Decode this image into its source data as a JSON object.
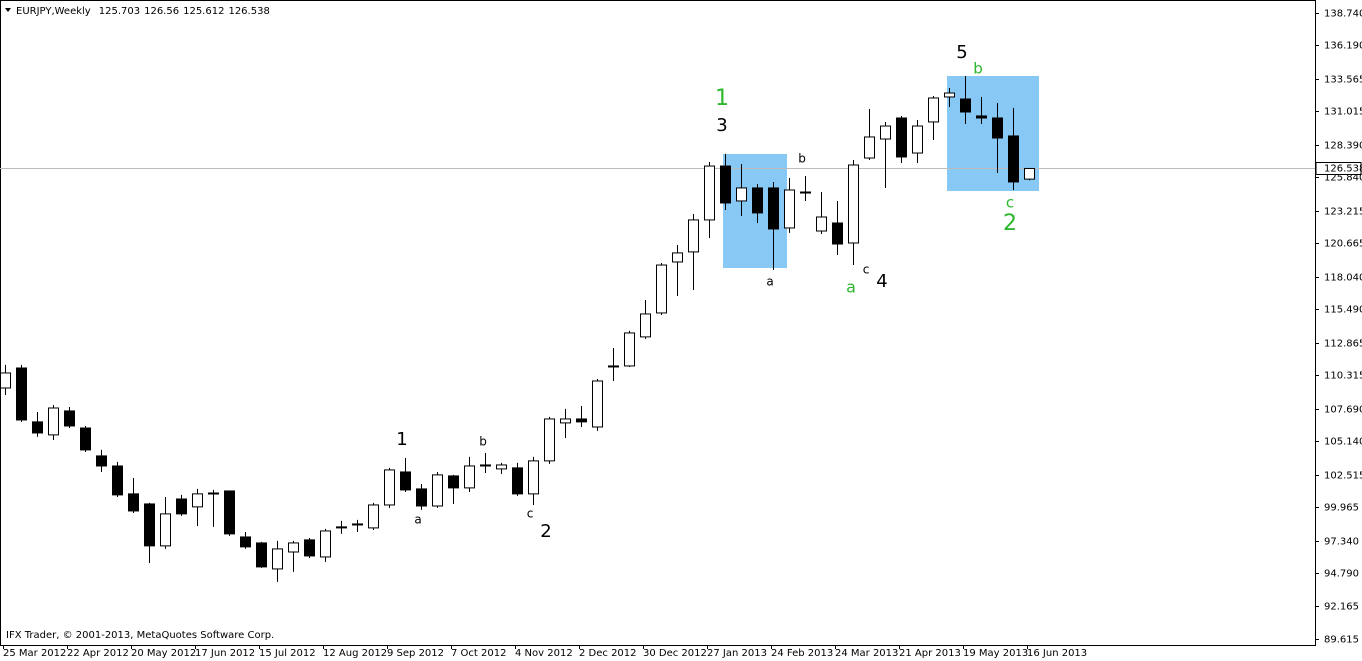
{
  "chart_data": {
    "type": "candlestick",
    "title": "EURJPY,Weekly",
    "copyright": "IFX Trader, © 2001-2013, MetaQuotes Software Corp.",
    "x": [
      "25 Mar 2012",
      "1 Apr 2012",
      "8 Apr 2012",
      "15 Apr 2012",
      "22 Apr 2012",
      "29 Apr 2012",
      "6 May 2012",
      "13 May 2012",
      "20 May 2012",
      "27 May 2012",
      "3 Jun 2012",
      "10 Jun 2012",
      "17 Jun 2012",
      "24 Jun 2012",
      "1 Jul 2012",
      "8 Jul 2012",
      "15 Jul 2012",
      "22 Jul 2012",
      "29 Jul 2012",
      "5 Aug 2012",
      "12 Aug 2012",
      "19 Aug 2012",
      "26 Aug 2012",
      "2 Sep 2012",
      "9 Sep 2012",
      "16 Sep 2012",
      "23 Sep 2012",
      "30 Sep 2012",
      "7 Oct 2012",
      "14 Oct 2012",
      "21 Oct 2012",
      "28 Oct 2012",
      "4 Nov 2012",
      "11 Nov 2012",
      "18 Nov 2012",
      "25 Nov 2012",
      "2 Dec 2012",
      "9 Dec 2012",
      "16 Dec 2012",
      "23 Dec 2012",
      "30 Dec 2012",
      "6 Jan 2013",
      "13 Jan 2013",
      "20 Jan 2013",
      "27 Jan 2013",
      "3 Feb 2013",
      "10 Feb 2013",
      "17 Feb 2013",
      "24 Feb 2013",
      "3 Mar 2013",
      "10 Mar 2013",
      "17 Mar 2013",
      "24 Mar 2013",
      "31 Mar 2013",
      "7 Apr 2013",
      "14 Apr 2013",
      "21 Apr 2013",
      "28 Apr 2013",
      "5 May 2013",
      "12 May 2013",
      "19 May 2013",
      "26 May 2013",
      "2 Jun 2013",
      "9 Jun 2013",
      "16 Jun 2013"
    ],
    "open": [
      109.31,
      110.88,
      106.65,
      105.63,
      107.51,
      106.17,
      103.98,
      103.19,
      101.0,
      100.21,
      96.92,
      100.6,
      99.98,
      101.0,
      101.23,
      97.62,
      97.15,
      95.11,
      96.44,
      97.39,
      96.05,
      98.33,
      98.56,
      98.33,
      100.13,
      102.72,
      101.39,
      100.05,
      102.41,
      101.47,
      103.27,
      102.96,
      103.04,
      101.0,
      103.59,
      106.57,
      106.88,
      106.25,
      110.96,
      111.04,
      113.32,
      115.2,
      119.2,
      119.99,
      122.5,
      126.73,
      123.99,
      125.01,
      125.01,
      121.87,
      124.62,
      121.63,
      122.26,
      120.69,
      127.36,
      128.85,
      130.5,
      127.75,
      130.19,
      132.15,
      131.99,
      130.66,
      130.5,
      129.09,
      125.703
    ],
    "high": [
      111.12,
      111.12,
      107.43,
      107.98,
      107.82,
      106.33,
      104.45,
      103.51,
      102.25,
      100.29,
      100.76,
      100.92,
      101.39,
      101.31,
      101.23,
      98.01,
      97.23,
      97.31,
      97.31,
      97.54,
      98.25,
      98.88,
      98.96,
      100.29,
      103.04,
      103.82,
      101.78,
      102.72,
      102.49,
      103.9,
      104.21,
      103.43,
      103.43,
      103.9,
      107.04,
      107.67,
      107.9,
      110.02,
      112.45,
      113.79,
      116.22,
      119.12,
      120.53,
      122.97,
      127.05,
      127.68,
      126.89,
      125.32,
      125.48,
      125.79,
      125.95,
      124.69,
      123.99,
      127.2,
      131.21,
      130.19,
      130.66,
      130.34,
      132.23,
      132.85,
      133.8,
      132.15,
      131.68,
      131.29,
      126.56
    ],
    "low": [
      108.76,
      106.65,
      105.47,
      105.23,
      106.17,
      104.29,
      102.72,
      100.76,
      99.5,
      95.58,
      96.68,
      99.27,
      98.48,
      98.41,
      97.7,
      96.68,
      95.19,
      94.09,
      94.88,
      95.97,
      95.66,
      97.86,
      98.01,
      98.17,
      99.9,
      101.15,
      99.74,
      99.9,
      100.21,
      101.15,
      102.64,
      102.57,
      100.84,
      100.13,
      103.35,
      105.39,
      106.25,
      105.94,
      109.86,
      110.96,
      113.16,
      115.04,
      116.53,
      117.0,
      121.08,
      123.28,
      122.81,
      122.26,
      118.57,
      121.48,
      123.99,
      121.4,
      119.75,
      118.96,
      127.2,
      125.01,
      126.97,
      126.97,
      128.77,
      131.36,
      130.03,
      130.03,
      126.18,
      124.85,
      125.612
    ],
    "close": [
      110.49,
      106.8,
      105.78,
      107.74,
      106.33,
      104.45,
      103.19,
      100.92,
      99.66,
      96.92,
      99.43,
      99.43,
      101.0,
      101.07,
      97.86,
      96.84,
      95.27,
      96.68,
      97.15,
      96.13,
      98.09,
      98.41,
      98.64,
      100.13,
      102.88,
      101.31,
      100.05,
      102.49,
      101.47,
      103.19,
      103.19,
      103.27,
      101.0,
      103.59,
      106.88,
      106.88,
      106.65,
      109.86,
      111.04,
      113.63,
      115.12,
      118.96,
      119.91,
      122.5,
      126.73,
      123.83,
      125.01,
      123.05,
      121.79,
      124.85,
      124.69,
      122.73,
      120.61,
      126.81,
      129.01,
      129.87,
      127.44,
      129.87,
      132.07,
      132.46,
      130.97,
      130.5,
      128.93,
      125.48,
      126.538
    ],
    "ylim": [
      89.14,
      139.76
    ],
    "yticks": [
      {
        "value": 138.74,
        "label": "138.740"
      },
      {
        "value": 136.19,
        "label": "136.190"
      },
      133.565,
      131.015,
      {
        "value": 128.39,
        "label": "128.390"
      },
      {
        "value": 125.84,
        "label": "125.840"
      },
      123.215,
      120.665,
      {
        "value": 118.04,
        "label": "118.040"
      },
      {
        "value": 115.49,
        "label": "115.490"
      },
      112.865,
      110.315,
      {
        "value": 107.69,
        "label": "107.690"
      },
      {
        "value": 105.14,
        "label": "105.140"
      },
      102.515,
      99.965,
      {
        "value": 97.34,
        "label": "97.340"
      },
      {
        "value": 94.79,
        "label": "94.790"
      },
      92.165,
      89.615
    ],
    "up_color": "#ffffff",
    "down_color": "#000000",
    "outline_color": "#000000",
    "annotations": [
      {
        "text": "1",
        "color": "#2db82d"
      },
      {
        "text": "3",
        "color": "#000000"
      },
      {
        "text": "b",
        "color": "#000000"
      },
      {
        "text": "a",
        "color": "#000000"
      },
      {
        "text": "a",
        "color": "#2db82d"
      },
      {
        "text": "c",
        "color": "#000000"
      },
      {
        "text": "4",
        "color": "#000000"
      },
      {
        "text": "5",
        "color": "#000000"
      },
      {
        "text": "b",
        "color": "#2db82d"
      },
      {
        "text": "c",
        "color": "#2db82d"
      },
      {
        "text": "2",
        "color": "#2db82d"
      },
      {
        "text": "1",
        "color": "#000000"
      },
      {
        "text": "a",
        "color": "#000000"
      },
      {
        "text": "b",
        "color": "#000000"
      },
      {
        "text": "c",
        "color": "#000000"
      },
      {
        "text": "2",
        "color": "#000000"
      }
    ]
  }
}
